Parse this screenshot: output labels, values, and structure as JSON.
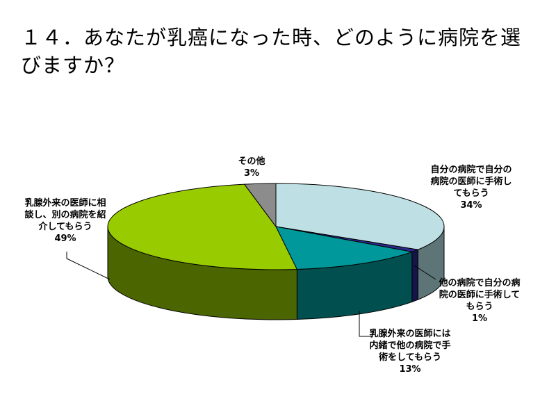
{
  "title": "１４．あなたが乳癌になった時、どのように病院を選びますか？",
  "chart_data": {
    "type": "pie",
    "title": "１４．あなたが乳癌になった時、どのように病院を選びますか？",
    "three_d": true,
    "legend": "none",
    "slices": [
      {
        "label_lines": [
          "自分の病院で自分の",
          "病院の医師に手術し",
          "てもらう"
        ],
        "value": 34,
        "value_label": "34%",
        "color": "#BEE0E4",
        "side_color": "#5E7578"
      },
      {
        "label_lines": [
          "他の病院で自分の病",
          "院の医師に手術して",
          "もらう"
        ],
        "value": 1,
        "value_label": "1%",
        "color": "#2B2A8C",
        "side_color": "#15154A"
      },
      {
        "label_lines": [
          "乳腺外来の医師には",
          "内緒で他の病院で手",
          "術をしてもらう"
        ],
        "value": 13,
        "value_label": "13%",
        "color": "#00989A",
        "side_color": "#024F50"
      },
      {
        "label_lines": [
          "乳腺外来の医師に相",
          "談し、別の病院を紹",
          "介してもらう"
        ],
        "value": 49,
        "value_label": "49%",
        "color": "#99CC00",
        "side_color": "#4B6600"
      },
      {
        "label_lines": [
          "その他"
        ],
        "value": 3,
        "value_label": "3%",
        "color": "#8C8C8C",
        "side_color": "#555555"
      }
    ]
  }
}
